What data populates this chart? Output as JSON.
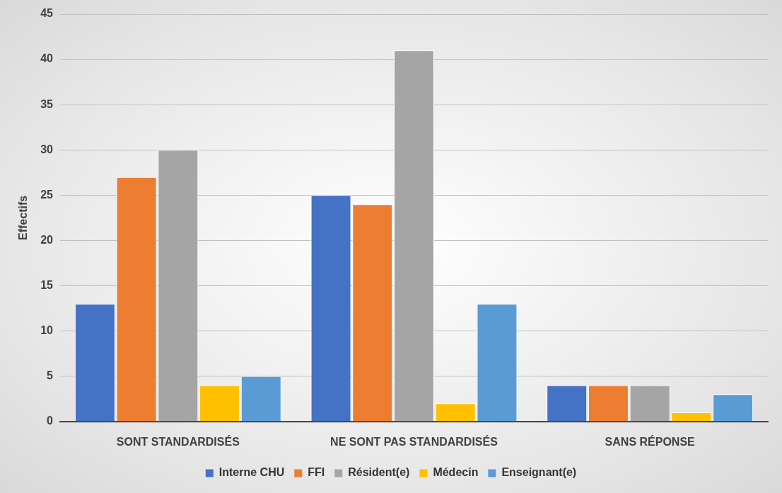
{
  "chart_data": {
    "type": "bar",
    "ylabel": "Effectifs",
    "categories": [
      "SONT STANDARDISÉS",
      "NE SONT PAS STANDARDISÉS",
      "SANS RÉPONSE"
    ],
    "series": [
      {
        "name": "Interne CHU",
        "color": "#4472c4",
        "values": [
          13,
          25,
          4
        ]
      },
      {
        "name": "FFI",
        "color": "#ed7d31",
        "values": [
          27,
          24,
          4
        ]
      },
      {
        "name": "Résident(e)",
        "color": "#a5a5a5",
        "values": [
          30,
          41,
          4
        ]
      },
      {
        "name": "Médecin",
        "color": "#ffc000",
        "values": [
          4,
          2,
          1
        ]
      },
      {
        "name": "Enseignant(e)",
        "color": "#5b9bd5",
        "values": [
          5,
          13,
          3
        ]
      }
    ],
    "ylim": [
      0,
      45
    ],
    "yticks": [
      0,
      5,
      10,
      15,
      20,
      25,
      30,
      35,
      40,
      45
    ],
    "grid": "y",
    "legend": "bottom"
  }
}
